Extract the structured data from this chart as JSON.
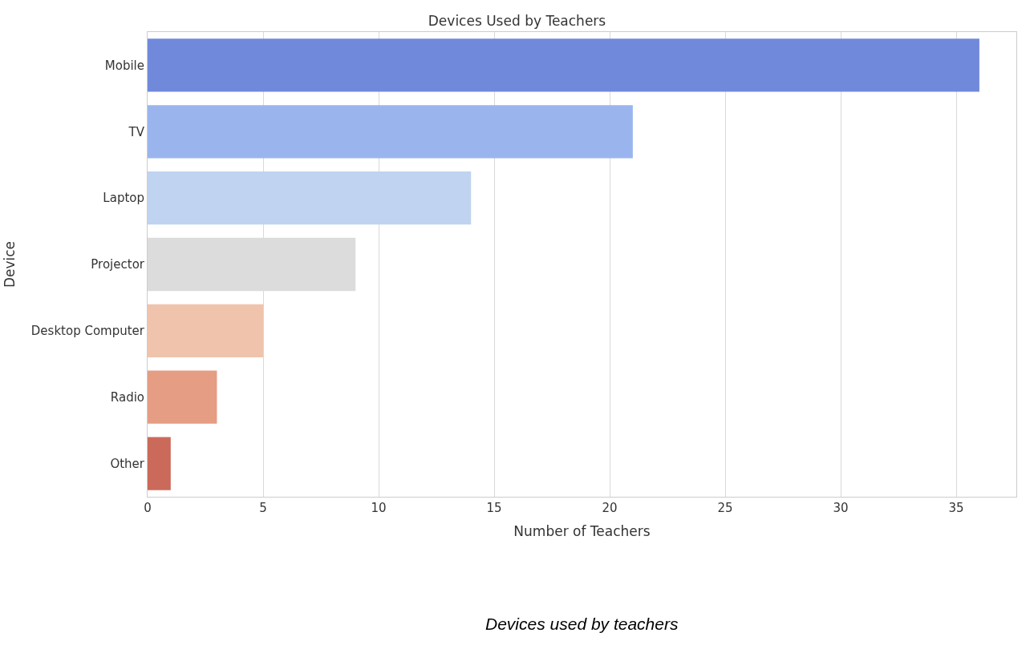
{
  "chart_data": {
    "type": "bar",
    "orientation": "horizontal",
    "title": "Devices Used by Teachers",
    "xlabel": "Number of Teachers",
    "ylabel": "Device",
    "categories": [
      "Mobile",
      "TV",
      "Laptop",
      "Projector",
      "Desktop Computer",
      "Radio",
      "Other"
    ],
    "values": [
      36,
      21,
      14,
      9,
      5,
      3,
      1
    ],
    "colors": [
      "#7089da",
      "#9ab5ee",
      "#c0d3f0",
      "#dcdcdc",
      "#f0c3ad",
      "#e59d84",
      "#cb6a5a"
    ],
    "xlim": [
      0,
      37.6
    ],
    "xticks": [
      0,
      5,
      10,
      15,
      20,
      25,
      30,
      35
    ],
    "grid": "x",
    "annotations": [
      "Devices used by teachers"
    ]
  }
}
